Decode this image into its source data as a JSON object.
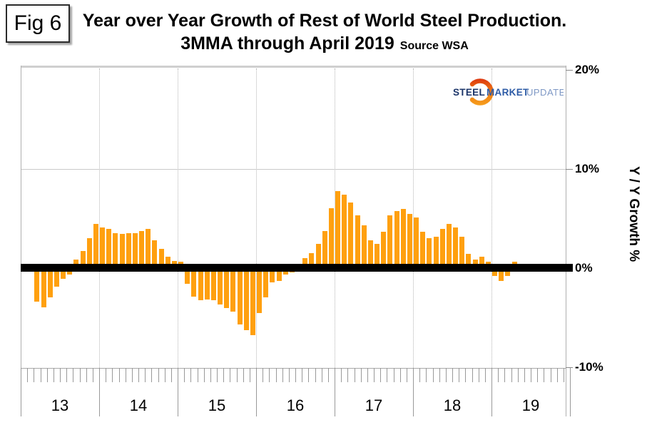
{
  "figure_label": "Fig 6",
  "title_line1": "Year over Year Growth of Rest of World Steel Production.",
  "title_line2": "3MMA through April 2019",
  "title_source": "Source WSA",
  "logo": {
    "steel": "STEEL",
    "market": "MARKET",
    "update": "UPDATE"
  },
  "chart_data": {
    "type": "bar",
    "title": "Year over Year Growth of Rest of World Steel Production. 3MMA through April 2019",
    "source": "Source WSA",
    "frequency": "monthly",
    "start_month": "2013-03",
    "end_month": "2019-04",
    "values": [
      -3.4,
      -4.0,
      -3.0,
      -1.9,
      -1.1,
      -0.7,
      0.8,
      1.7,
      3.0,
      4.4,
      4.1,
      3.9,
      3.5,
      3.4,
      3.5,
      3.5,
      3.7,
      3.9,
      2.8,
      1.9,
      1.1,
      0.7,
      0.6,
      -1.6,
      -2.9,
      -3.3,
      -3.2,
      -3.3,
      -3.7,
      -4.1,
      -4.4,
      -5.7,
      -6.3,
      -6.8,
      -4.6,
      -3.0,
      -1.5,
      -1.3,
      -0.7,
      -0.5,
      0.0,
      1.0,
      1.5,
      2.4,
      3.7,
      6.0,
      7.7,
      7.4,
      6.6,
      5.3,
      4.3,
      2.8,
      2.4,
      3.6,
      5.3,
      5.7,
      5.9,
      5.4,
      5.1,
      3.6,
      3.0,
      3.1,
      3.9,
      4.4,
      4.1,
      3.1,
      1.4,
      0.8,
      1.1,
      0.6,
      -0.8,
      -1.3,
      -0.8,
      0.6
    ],
    "bar_color": "#FFA00F",
    "zero_line_color": "#000000",
    "ylabel": "Y / Y Growth %",
    "ylim": [
      -10,
      20
    ],
    "yticks": [
      {
        "value": 20,
        "label": "20%"
      },
      {
        "value": 10,
        "label": "10%"
      },
      {
        "value": 0,
        "label": "0%"
      },
      {
        "value": -10,
        "label": "-10%"
      }
    ],
    "year_labels": [
      "13",
      "14",
      "15",
      "16",
      "17",
      "18",
      "19"
    ],
    "legend": "none",
    "grid": {
      "horizontal_solid": [
        20,
        10,
        -10
      ],
      "vertical_dotted_year_boundaries": true
    }
  }
}
